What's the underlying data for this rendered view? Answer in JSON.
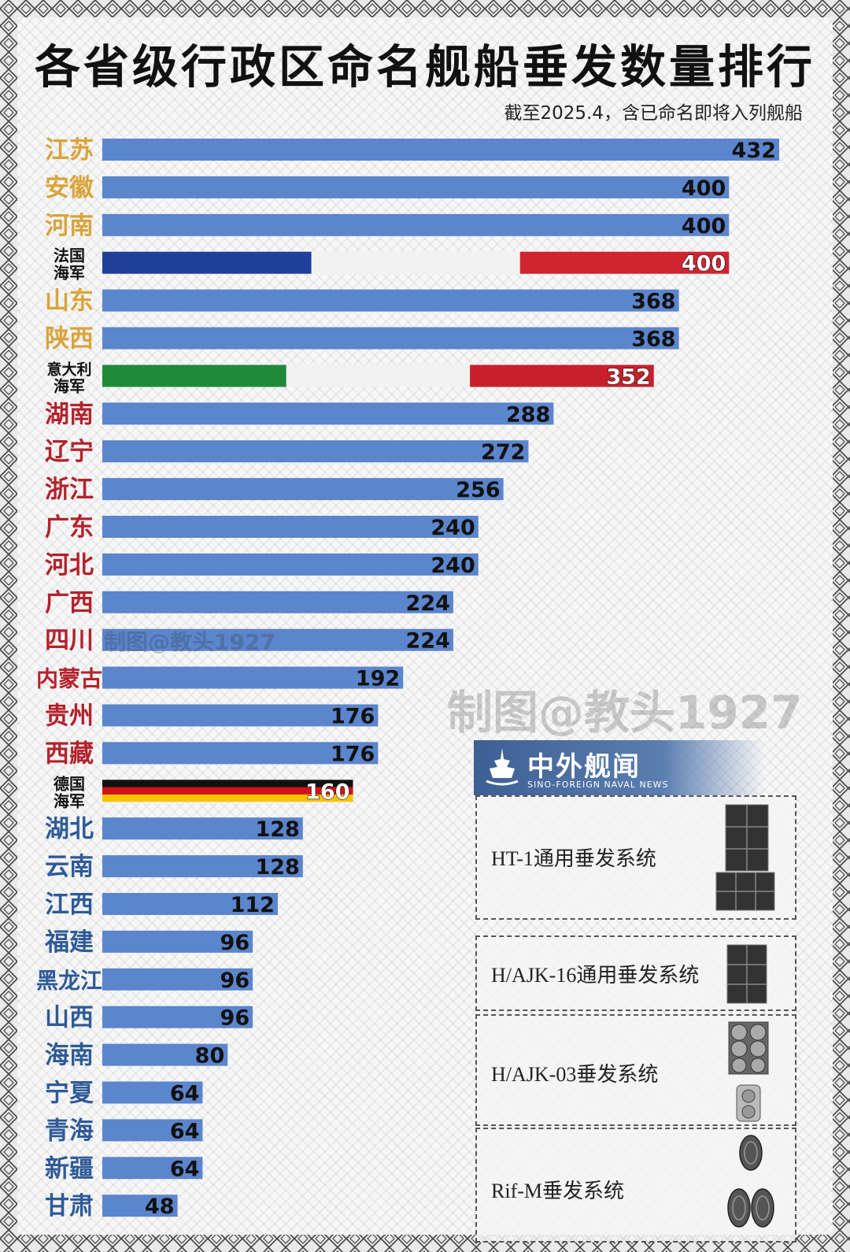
{
  "title": "各省级行政区命名舰船垂发数量排行",
  "subtitle": "截至2025.4，含已命名即将入列舰船",
  "watermark_small": "制图@教头1927",
  "watermark_large": "制图@教头1927",
  "brand": {
    "name_cn": "中外舰闻",
    "name_en": "SINO-FOREIGN NAVAL NEWS",
    "icon": "warship-logo-icon"
  },
  "legend": [
    {
      "label": "HT-1通用垂发系统",
      "icon": "vls-large-cells-icon"
    },
    {
      "label": "H/AJK-16通用垂发系统",
      "icon": "vls-square-cells-icon"
    },
    {
      "label": "H/AJK-03垂发系统",
      "icon": "vls-round-cells-icon"
    },
    {
      "label": "Rif-M垂发系统",
      "icon": "vls-drum-cells-icon"
    }
  ],
  "colors": {
    "bar": "#5b85cc",
    "label_gold": "#d9a43a",
    "label_red": "#b3222c",
    "label_blue": "#2e5a97",
    "value_text": "#111111"
  },
  "chart_data": {
    "type": "bar",
    "orientation": "horizontal",
    "categories": [
      "江苏",
      "安徽",
      "河南",
      "法国海军",
      "山东",
      "陕西",
      "意大利海军",
      "湖南",
      "辽宁",
      "浙江",
      "广东",
      "河北",
      "广西",
      "四川",
      "内蒙古",
      "贵州",
      "西藏",
      "德国海军",
      "湖北",
      "云南",
      "江西",
      "福建",
      "黑龙江",
      "山西",
      "海南",
      "宁夏",
      "青海",
      "新疆",
      "甘肃"
    ],
    "values": [
      432,
      400,
      400,
      400,
      368,
      368,
      352,
      288,
      272,
      256,
      240,
      240,
      224,
      224,
      192,
      176,
      176,
      160,
      128,
      128,
      112,
      96,
      96,
      96,
      80,
      64,
      64,
      64,
      48
    ],
    "label_colors": [
      "gold",
      "gold",
      "gold",
      "black",
      "gold",
      "gold",
      "black",
      "red",
      "red",
      "red",
      "red",
      "red",
      "red",
      "red",
      "red",
      "red",
      "red",
      "black",
      "blue",
      "blue",
      "blue",
      "blue",
      "blue",
      "blue",
      "blue",
      "blue",
      "blue",
      "blue",
      "blue"
    ],
    "bar_styles": [
      "plain",
      "plain",
      "plain",
      "flag-france",
      "plain",
      "plain",
      "flag-italy",
      "plain",
      "plain",
      "plain",
      "plain",
      "plain",
      "plain",
      "plain",
      "plain",
      "plain",
      "plain",
      "flag-germany",
      "plain",
      "plain",
      "plain",
      "plain",
      "plain",
      "plain",
      "plain",
      "plain",
      "plain",
      "plain",
      "plain"
    ],
    "xlim": [
      0,
      432
    ],
    "grid": false,
    "legend": "bottom-right"
  }
}
